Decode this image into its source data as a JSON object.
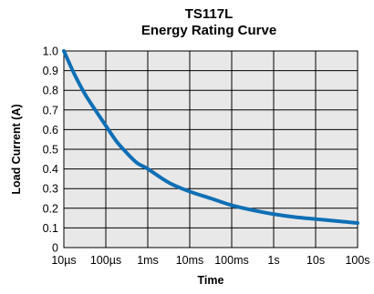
{
  "chart_data": {
    "type": "line",
    "title": "TS117L",
    "subtitle": "Energy Rating Curve",
    "xlabel": "Time",
    "ylabel": "Load Current (A)",
    "x_scale": "log",
    "x_ticks": [
      "10µs",
      "100µs",
      "1ms",
      "10ms",
      "100ms",
      "1s",
      "10s",
      "100s"
    ],
    "y_ticks": [
      "0",
      "0.1",
      "0.2",
      "0.3",
      "0.4",
      "0.5",
      "0.6",
      "0.7",
      "0.8",
      "0.9",
      "1.0"
    ],
    "ylim": [
      0,
      1.0
    ],
    "grid": true,
    "series": [
      {
        "color": "#0f6fb5",
        "x": [
          "10µs",
          "18µs",
          "32µs",
          "56µs",
          "100µs",
          "180µs",
          "320µs",
          "560µs",
          "1ms",
          "3.2ms",
          "10ms",
          "32ms",
          "100ms",
          "320ms",
          "1s",
          "3.2s",
          "10s",
          "32s",
          "100s"
        ],
        "values": [
          1.0,
          0.88,
          0.78,
          0.7,
          0.62,
          0.54,
          0.48,
          0.43,
          0.4,
          0.33,
          0.285,
          0.25,
          0.215,
          0.19,
          0.17,
          0.155,
          0.145,
          0.135,
          0.125
        ]
      }
    ]
  }
}
